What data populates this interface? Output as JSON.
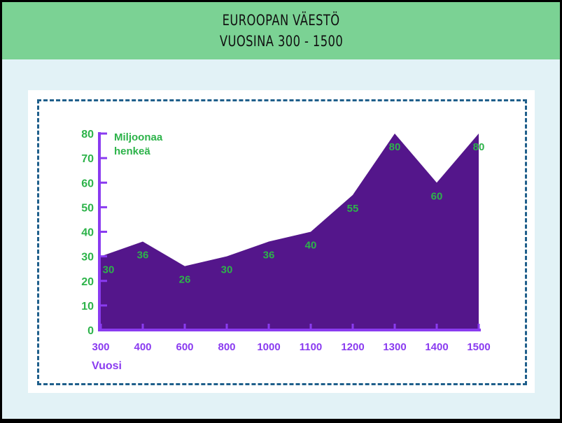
{
  "header": {
    "title_line1": "EUROOPAN VÄESTÖ",
    "title_line2": "VUOSINA 300 - 1500"
  },
  "colors": {
    "header_bg": "#7bd294",
    "page_bg": "#e2f2f6",
    "area_fill": "#54168b",
    "axis": "#8a3bf0",
    "label_green": "#2db34a",
    "dash_border": "#1f5f8b"
  },
  "chart_data": {
    "type": "area",
    "title": "EUROOPAN VÄESTÖ VUOSINA 300 - 1500",
    "xlabel": "Vuosi",
    "ylabel_line1": "Miljoonaa",
    "ylabel_line2": "henkeä",
    "categories": [
      "300",
      "400",
      "600",
      "800",
      "1000",
      "1100",
      "1200",
      "1300",
      "1400",
      "1500"
    ],
    "values": [
      30,
      36,
      26,
      30,
      36,
      40,
      55,
      80,
      60,
      80
    ],
    "data_labels": [
      "30",
      "36",
      "26",
      "30",
      "36",
      "40",
      "55",
      "80",
      "60",
      "80"
    ],
    "y_ticks": [
      "0",
      "10",
      "20",
      "30",
      "40",
      "50",
      "60",
      "70",
      "80"
    ],
    "ylim": [
      0,
      80
    ],
    "grid": false,
    "legend": "none"
  }
}
